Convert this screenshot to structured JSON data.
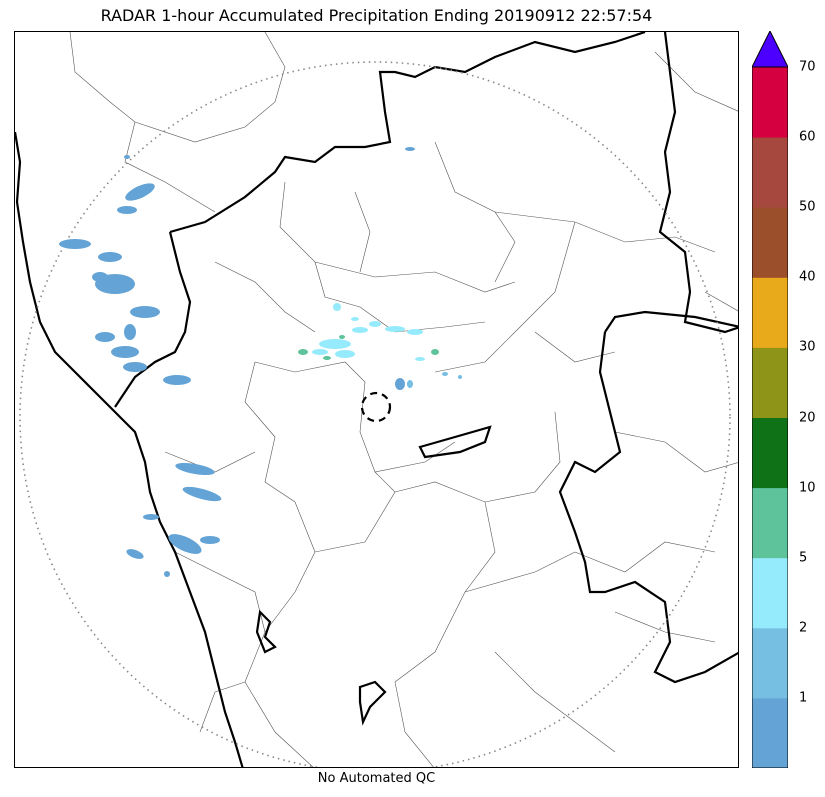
{
  "title": "RADAR 1-hour Accumulated Precipitation Ending 20190912 22:57:54",
  "footer": "No Automated QC",
  "colorbar": {
    "levels": [
      {
        "label": "1",
        "color": "#63a3d5"
      },
      {
        "label": "2",
        "color": "#76bfe3"
      },
      {
        "label": "5",
        "color": "#95ebfb"
      },
      {
        "label": "10",
        "color": "#5ec39b"
      },
      {
        "label": "20",
        "color": "#0f7217"
      },
      {
        "label": "30",
        "color": "#8d9417"
      },
      {
        "label": "40",
        "color": "#e8a91b"
      },
      {
        "label": "50",
        "color": "#9b4f2a"
      },
      {
        "label": "60",
        "color": "#a6483e"
      },
      {
        "label": "70",
        "color": "#d5003f"
      }
    ],
    "extend_color": "#4c00ff",
    "tick_labels": [
      "1",
      "2",
      "5",
      "10",
      "20",
      "30",
      "40",
      "50",
      "60",
      "70"
    ]
  },
  "map": {
    "range_ring_style": "dotted-gray",
    "radar_site_marker": "dashed-circle",
    "state_boundary_color": "#000000",
    "district_boundary_color": "#555555"
  }
}
